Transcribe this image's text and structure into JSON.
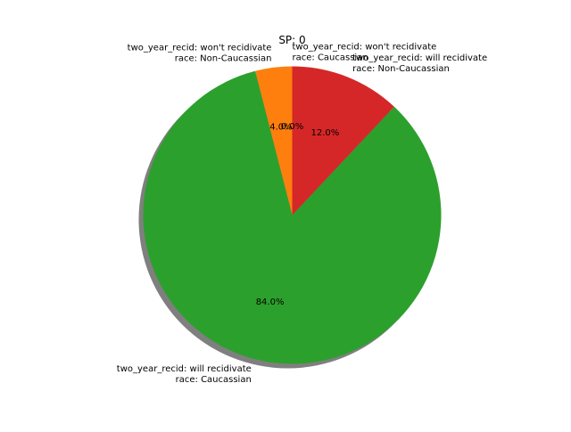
{
  "chart_data": {
    "type": "pie",
    "title": "SP: 0",
    "slices": [
      {
        "label_lines": [
          "two_year_recid: won't recidivate",
          "race: Caucassian"
        ],
        "value": 0.0,
        "pct_label": "0.0%",
        "color": "#1f77b4"
      },
      {
        "label_lines": [
          "two_year_recid: won't recidivate",
          "race: Non-Caucassian"
        ],
        "value": 4.0,
        "pct_label": "4.0%",
        "color": "#ff7f0e"
      },
      {
        "label_lines": [
          "two_year_recid: will recidivate",
          "race: Caucassian"
        ],
        "value": 84.0,
        "pct_label": "84.0%",
        "color": "#2ca02c"
      },
      {
        "label_lines": [
          "two_year_recid: will recidivate",
          "race: Non-Caucassian"
        ],
        "value": 12.0,
        "pct_label": "12.0%",
        "color": "#d62728"
      }
    ],
    "start_angle_deg": 90,
    "direction": "counterclockwise",
    "shadow": true,
    "legend": "none"
  }
}
